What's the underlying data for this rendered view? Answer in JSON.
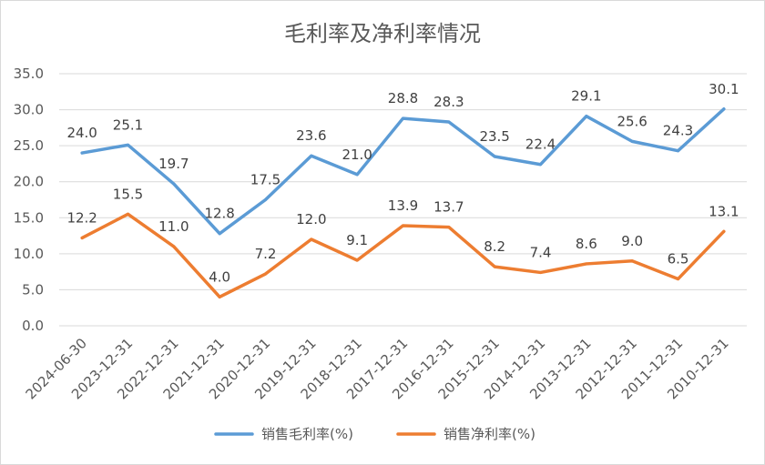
{
  "chart_data": {
    "type": "line",
    "title": "毛利率及净利率情况",
    "categories": [
      "2024-06-30",
      "2023-12-31",
      "2022-12-31",
      "2021-12-31",
      "2020-12-31",
      "2019-12-31",
      "2018-12-31",
      "2017-12-31",
      "2016-12-31",
      "2015-12-31",
      "2014-12-31",
      "2013-12-31",
      "2012-12-31",
      "2011-12-31",
      "2010-12-31"
    ],
    "y_ticks": [
      "0.0",
      "5.0",
      "10.0",
      "15.0",
      "20.0",
      "25.0",
      "30.0",
      "35.0"
    ],
    "ylim": [
      0,
      35
    ],
    "grid": true,
    "legend_position": "bottom",
    "series": [
      {
        "name": "销售毛利率(%)",
        "color": "#5B9BD5",
        "values": [
          24.0,
          25.1,
          19.7,
          12.8,
          17.5,
          23.6,
          21.0,
          28.8,
          28.3,
          23.5,
          22.4,
          29.1,
          25.6,
          24.3,
          30.1
        ],
        "labels": [
          "24.0",
          "25.1",
          "19.7",
          "12.8",
          "17.5",
          "23.6",
          "21.0",
          "28.8",
          "28.3",
          "23.5",
          "22.4",
          "29.1",
          "25.6",
          "24.3",
          "30.1"
        ]
      },
      {
        "name": "销售净利率(%)",
        "color": "#ED7D31",
        "values": [
          12.2,
          15.5,
          11.0,
          4.0,
          7.2,
          12.0,
          9.1,
          13.9,
          13.7,
          8.2,
          7.4,
          8.6,
          9.0,
          6.5,
          13.1
        ],
        "labels": [
          "12.2",
          "15.5",
          "11.0",
          "4.0",
          "7.2",
          "12.0",
          "9.1",
          "13.9",
          "13.7",
          "8.2",
          "7.4",
          "8.6",
          "9.0",
          "6.5",
          "13.1"
        ]
      }
    ]
  }
}
